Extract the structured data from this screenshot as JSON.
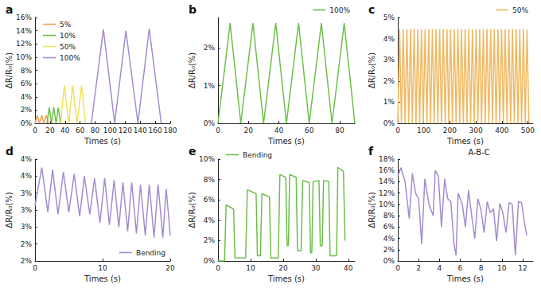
{
  "chart_data": [
    {
      "type": "line",
      "title": "a",
      "x_label": "Times (s)",
      "y_label": "ΔR/R₀(%)",
      "grid": false,
      "legend": "upper left",
      "xlim": [
        0,
        180
      ],
      "xticks": [
        0,
        20,
        40,
        60,
        80,
        100,
        120,
        140,
        160,
        180
      ],
      "ylim": [
        0,
        16
      ],
      "yticks": [
        {
          "value": 0,
          "label": "0%"
        },
        {
          "value": 2,
          "label": "2%"
        },
        {
          "value": 4,
          "label": "4%"
        },
        {
          "value": 6,
          "label": "6%"
        },
        {
          "value": 8,
          "label": "8%"
        },
        {
          "value": 10,
          "label": "10%"
        },
        {
          "value": 12,
          "label": "12%"
        },
        {
          "value": 14,
          "label": "14%"
        },
        {
          "value": 16,
          "label": "16%"
        }
      ],
      "series": [
        {
          "name": "5%",
          "color": "#f4a259",
          "x": [
            0,
            3,
            6,
            9,
            12,
            15,
            18
          ],
          "values": [
            0,
            1.2,
            0,
            1.2,
            0,
            1.2,
            0
          ]
        },
        {
          "name": "10%",
          "color": "#6cbf4a",
          "x": [
            16,
            19,
            22,
            25,
            28,
            31,
            34
          ],
          "values": [
            0,
            2.4,
            0,
            2.4,
            0,
            2.4,
            0
          ]
        },
        {
          "name": "50%",
          "color": "#f0e05a",
          "x": [
            34,
            39,
            45,
            50,
            56,
            62,
            67
          ],
          "values": [
            0,
            5.7,
            0,
            5.7,
            0,
            5.7,
            0
          ]
        },
        {
          "name": "100%",
          "color": "#a48bd0",
          "x": [
            75,
            91,
            106,
            121,
            137,
            152,
            168
          ],
          "values": [
            0,
            14.2,
            0,
            14.0,
            0,
            14.3,
            0
          ]
        }
      ]
    },
    {
      "type": "line",
      "title": "b",
      "x_label": "Times (s)",
      "y_label": "ΔR/R₀(%)",
      "grid": false,
      "legend": "upper right",
      "xlim": [
        0,
        90
      ],
      "xticks": [
        0,
        20,
        40,
        60,
        80
      ],
      "ylim": [
        0,
        2.8
      ],
      "yticks": [
        {
          "value": 0,
          "label": "0%"
        },
        {
          "value": 1,
          "label": "1%"
        },
        {
          "value": 2,
          "label": "2%"
        }
      ],
      "series": [
        {
          "name": "100%",
          "color": "#6cbf4a",
          "x": [
            0,
            8,
            15,
            23,
            30,
            38,
            45,
            53,
            60,
            68,
            75,
            83,
            90
          ],
          "values": [
            0,
            2.65,
            0,
            2.65,
            0,
            2.65,
            0,
            2.65,
            0,
            2.65,
            0,
            2.65,
            0
          ]
        }
      ]
    },
    {
      "type": "line",
      "title": "c",
      "x_label": "Times (s)",
      "y_label": "ΔR/R₀(%)",
      "grid": false,
      "legend": "upper right",
      "xlim": [
        0,
        520
      ],
      "xticks": [
        0,
        100,
        200,
        300,
        400,
        500
      ],
      "ylim": [
        0,
        5
      ],
      "yticks": [
        {
          "value": 0,
          "label": "0%"
        },
        {
          "value": 1,
          "label": "1%"
        },
        {
          "value": 2,
          "label": "2%"
        },
        {
          "value": 3,
          "label": "3%"
        },
        {
          "value": 4,
          "label": "4%"
        },
        {
          "value": 5,
          "label": "5%"
        }
      ],
      "series": [
        {
          "name": "50%",
          "color": "#f0b860",
          "x": [
            0,
            7,
            14,
            21,
            28,
            35,
            42,
            49,
            56,
            63,
            70,
            77,
            84,
            91,
            98,
            105,
            112,
            119,
            126,
            133,
            140,
            147,
            154,
            161,
            168,
            175,
            182,
            189,
            196,
            203,
            210,
            217,
            224,
            231,
            238,
            245,
            252,
            259,
            266,
            273,
            280,
            287,
            294,
            301,
            308,
            315,
            322,
            329,
            336,
            343,
            350,
            357,
            364,
            371,
            378,
            385,
            392,
            399,
            406,
            413,
            420,
            427,
            434,
            441,
            448,
            455,
            462,
            469,
            476,
            483,
            490,
            497,
            504
          ],
          "values": [
            0,
            4.45,
            0,
            4.45,
            0,
            4.45,
            0,
            4.45,
            0,
            4.45,
            0,
            4.45,
            0,
            4.45,
            0,
            4.45,
            0,
            4.45,
            0,
            4.45,
            0,
            4.45,
            0,
            4.45,
            0,
            4.45,
            0,
            4.45,
            0,
            4.45,
            0,
            4.45,
            0,
            4.45,
            0,
            4.45,
            0,
            4.45,
            0,
            4.45,
            0,
            4.45,
            0,
            4.45,
            0,
            4.45,
            0,
            4.45,
            0,
            4.45,
            0,
            4.45,
            0,
            4.45,
            0,
            4.45,
            0,
            4.45,
            0,
            4.45,
            0,
            4.45,
            0,
            4.45,
            0,
            4.45,
            0,
            4.45,
            0,
            4.45,
            0,
            4.45,
            0
          ]
        }
      ]
    },
    {
      "type": "line",
      "title": "d",
      "x_label": "Times (s)",
      "y_label": "ΔR/R₀(%)",
      "grid": false,
      "legend": "lower right",
      "xlim": [
        0,
        20
      ],
      "xticks": [
        0,
        10,
        20
      ],
      "ylim": [
        1.8,
        4.2
      ],
      "yticks": [
        {
          "value": 1.8,
          "label": "2%"
        },
        {
          "value": 2.2,
          "label": "2%"
        },
        {
          "value": 2.6,
          "label": "3%"
        },
        {
          "value": 3.0,
          "label": "3%"
        },
        {
          "value": 3.4,
          "label": "3%"
        },
        {
          "value": 3.8,
          "label": "4%"
        },
        {
          "value": 4.2,
          "label": "4%"
        }
      ],
      "series": [
        {
          "name": "Bending",
          "color": "#a48bd0",
          "x": [
            0,
            1.0,
            1.9,
            2.6,
            3.4,
            4.2,
            5.0,
            5.8,
            6.6,
            7.3,
            8.1,
            8.8,
            9.6,
            10.3,
            11.0,
            11.7,
            12.4,
            13.0,
            13.7,
            14.3,
            15.0,
            15.6,
            16.3,
            16.9,
            17.6,
            18.2,
            18.9,
            19.4,
            20
          ],
          "values": [
            3.1,
            4.0,
            2.95,
            3.95,
            2.9,
            3.9,
            2.95,
            3.85,
            2.85,
            3.8,
            2.9,
            3.75,
            2.7,
            3.75,
            2.65,
            3.7,
            2.6,
            3.65,
            2.5,
            3.65,
            2.45,
            3.6,
            2.4,
            3.6,
            2.35,
            3.6,
            2.35,
            3.5,
            2.4
          ]
        }
      ]
    },
    {
      "type": "line",
      "title": "e",
      "x_label": "Times (s)",
      "y_label": "ΔR/R₀(%)",
      "grid": false,
      "legend": "upper left",
      "xlim": [
        0,
        42
      ],
      "xticks": [
        0,
        10,
        20,
        30,
        40
      ],
      "ylim": [
        0,
        10
      ],
      "yticks": [
        {
          "value": 0,
          "label": "0%"
        },
        {
          "value": 2,
          "label": "2%"
        },
        {
          "value": 4,
          "label": "4%"
        },
        {
          "value": 6,
          "label": "6%"
        },
        {
          "value": 8,
          "label": "8%"
        },
        {
          "value": 10,
          "label": "10%"
        }
      ],
      "series": [
        {
          "name": "Bending",
          "color": "#6cbf4a",
          "x": [
            0,
            2,
            2.5,
            4.8,
            5.2,
            8.5,
            9,
            11.7,
            12.1,
            13,
            13.5,
            15.8,
            16.2,
            18.5,
            19,
            20.8,
            21.2,
            21.6,
            22,
            24,
            24.4,
            25.5,
            26,
            28,
            28.4,
            28.8,
            29.2,
            31,
            31.4,
            32,
            32.4,
            34,
            34.4,
            36.4,
            36.8,
            38.5,
            39
          ],
          "values": [
            0,
            0,
            5.5,
            5.1,
            0.3,
            0.3,
            7,
            6.6,
            0.5,
            0.5,
            6.6,
            6.3,
            0.3,
            0.3,
            8.5,
            8.2,
            1.5,
            1.5,
            8.5,
            8.2,
            1,
            1,
            7.9,
            7.7,
            0.8,
            0.8,
            7.8,
            7.9,
            1.5,
            1.5,
            7.9,
            7.8,
            0.5,
            0.5,
            9.2,
            8.8,
            2
          ]
        }
      ]
    },
    {
      "type": "line",
      "title": "f",
      "x_label": "Times (s)",
      "y_label": "ΔR/R₀(%)",
      "grid": false,
      "annotation": "A-B-C",
      "xlim": [
        0,
        13
      ],
      "xticks": [
        0,
        2,
        4,
        6,
        8,
        10,
        12
      ],
      "ylim": [
        0,
        18
      ],
      "yticks": [
        {
          "value": 0,
          "label": "0%"
        },
        {
          "value": 2,
          "label": "2%"
        },
        {
          "value": 4,
          "label": "4%"
        },
        {
          "value": 6,
          "label": "6%"
        },
        {
          "value": 8,
          "label": "8%"
        },
        {
          "value": 10,
          "label": "10%"
        },
        {
          "value": 12,
          "label": "12%"
        },
        {
          "value": 14,
          "label": "14%"
        },
        {
          "value": 16,
          "label": "16%"
        },
        {
          "value": 18,
          "label": "18%"
        }
      ],
      "series": [
        {
          "color": "#a48bd0",
          "x": [
            0,
            0.3,
            0.7,
            1.1,
            1.4,
            1.7,
            2.0,
            2.3,
            2.6,
            3.0,
            3.4,
            3.6,
            3.9,
            4.2,
            4.5,
            4.8,
            5.1,
            5.4,
            5.6,
            5.8,
            6.2,
            6.5,
            6.8,
            7.1,
            7.4,
            7.7,
            8.0,
            8.3,
            8.6,
            8.9,
            9.2,
            9.5,
            9.8,
            10.1,
            10.4,
            10.7,
            11.0,
            11.3,
            11.6,
            11.9,
            12.2,
            12.4
          ],
          "values": [
            15,
            16.5,
            14,
            7.5,
            15.5,
            12,
            11,
            3,
            14.5,
            10,
            8,
            16,
            15,
            6,
            14.5,
            11,
            10.5,
            3,
            1,
            12,
            10,
            6,
            12.5,
            8,
            4,
            11,
            9,
            5,
            10.5,
            8.5,
            9.2,
            3.5,
            10.2,
            8.5,
            5,
            10.3,
            10,
            1,
            10.5,
            10.3,
            6.5,
            4.5
          ]
        }
      ]
    }
  ]
}
